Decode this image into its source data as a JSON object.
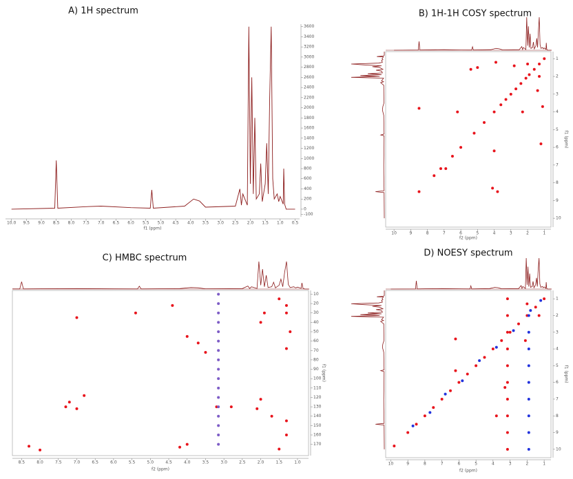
{
  "chart_data": [
    {
      "type": "line",
      "title": "A) 1H spectrum",
      "x_label": "f1 (ppm)",
      "color": "#8b1a1a",
      "x": [
        10.0,
        8.55,
        8.5,
        8.45,
        7.5,
        7.0,
        6.0,
        5.35,
        5.3,
        5.25,
        4.2,
        3.9,
        3.7,
        3.5,
        2.5,
        2.35,
        2.3,
        2.25,
        2.1,
        2.05,
        2.0,
        1.95,
        1.9,
        1.85,
        1.8,
        1.7,
        1.65,
        1.6,
        1.5,
        1.45,
        1.4,
        1.35,
        1.3,
        1.25,
        1.2,
        1.1,
        1.05,
        1.0,
        0.9,
        0.88,
        0.85,
        0.8,
        0.5
      ],
      "values": [
        0,
        20,
        960,
        20,
        50,
        60,
        30,
        20,
        380,
        20,
        60,
        200,
        160,
        40,
        60,
        400,
        80,
        300,
        80,
        3600,
        500,
        2600,
        300,
        1800,
        200,
        300,
        900,
        150,
        500,
        1300,
        300,
        2200,
        3600,
        600,
        200,
        300,
        150,
        250,
        100,
        800,
        100,
        0,
        0
      ],
      "xlim": [
        10.2,
        0.35
      ],
      "xticks": [
        {
          "value": 10,
          "label": "10.0"
        },
        9.5,
        {
          "value": 9,
          "label": "9.0"
        },
        8.5,
        {
          "value": 8,
          "label": "8.0"
        },
        7.5,
        {
          "value": 7,
          "label": "7.0"
        },
        6.5,
        {
          "value": 6,
          "label": "6.0"
        },
        5.5,
        {
          "value": 5,
          "label": "5.0"
        },
        4.5,
        {
          "value": 4,
          "label": "4.0"
        },
        3.5,
        {
          "value": 3,
          "label": "3.0"
        },
        2.5,
        {
          "value": 2,
          "label": "2.0"
        },
        1.5,
        {
          "value": 1,
          "label": "1.0"
        },
        0.5
      ],
      "ylim": [
        -150,
        3650
      ],
      "yticks": [
        3600,
        3400,
        3200,
        3000,
        2800,
        2600,
        2400,
        2200,
        2000,
        1800,
        1600,
        1400,
        1200,
        1000,
        800,
        600,
        400,
        200,
        0,
        -100
      ]
    },
    {
      "type": "scatter",
      "title": "B) 1H-1H COSY spectrum",
      "x_label": "f2 (ppm)",
      "y_label": "f1 (ppm)",
      "xlim": [
        10.5,
        0.6
      ],
      "xticks": [
        10,
        9,
        8,
        7,
        6,
        5,
        4,
        3,
        2,
        1
      ],
      "ylim": [
        10.5,
        0.6
      ],
      "yticks": [
        1,
        2,
        3,
        4,
        5,
        6,
        7,
        8,
        9,
        10
      ],
      "series": [
        {
          "color": "#e8141c",
          "x": [
            8.5,
            7.6,
            7.2,
            6.5,
            6.0,
            5.2,
            4.6,
            4.0,
            3.6,
            3.3,
            3.0,
            2.7,
            2.4,
            2.1,
            1.9,
            1.6,
            1.3,
            1.0,
            6.2,
            4.0,
            3.8,
            8.5,
            1.3,
            2.0,
            2.8,
            1.4,
            1.1,
            5.0,
            6.9,
            4.1,
            5.4,
            1.2,
            2.3,
            3.9
          ],
          "values": [
            8.5,
            7.6,
            7.2,
            6.5,
            6.0,
            5.2,
            4.6,
            4.0,
            3.6,
            3.3,
            3.0,
            2.7,
            2.4,
            2.1,
            1.9,
            1.6,
            1.3,
            1.0,
            4.0,
            6.2,
            8.5,
            3.8,
            2.0,
            1.3,
            1.4,
            2.8,
            3.7,
            1.5,
            7.2,
            8.3,
            1.6,
            5.8,
            4.0,
            1.2
          ]
        }
      ]
    },
    {
      "type": "scatter",
      "title": "C) HMBC spectrum",
      "x_label": "f2 (ppm)",
      "y_label": "f1 (ppm)",
      "xlim": [
        8.75,
        0.7
      ],
      "xticks": [
        8.5,
        {
          "value": 8,
          "label": "8.0"
        },
        7.5,
        {
          "value": 7,
          "label": "7.0"
        },
        6.5,
        {
          "value": 6,
          "label": "6.0"
        },
        5.5,
        {
          "value": 5,
          "label": "5.0"
        },
        4.5,
        {
          "value": 4,
          "label": "4.0"
        },
        3.5,
        {
          "value": 3,
          "label": "3.0"
        },
        2.5,
        {
          "value": 2,
          "label": "2.0"
        },
        1.5,
        {
          "value": 1,
          "label": "1.0"
        }
      ],
      "ylim": [
        182,
        6
      ],
      "yticks": [
        10,
        20,
        30,
        40,
        50,
        60,
        70,
        80,
        90,
        100,
        110,
        120,
        130,
        140,
        150,
        160,
        170
      ],
      "series": [
        {
          "color": "#e8141c",
          "x": [
            1.3,
            1.3,
            1.5,
            1.9,
            1.2,
            2.0,
            1.3,
            3.7,
            3.5,
            4.4,
            4.0,
            5.4,
            7.0,
            7.2,
            7.0,
            6.8,
            7.3,
            8.3,
            8.0,
            2.0,
            2.1,
            1.7,
            1.3,
            4.2,
            4.0,
            2.8,
            3.2,
            1.3,
            1.5
          ],
          "values": [
            30,
            22,
            15,
            30,
            50,
            40,
            68,
            62,
            72,
            22,
            55,
            30,
            35,
            125,
            132,
            118,
            130,
            172,
            176,
            122,
            132,
            140,
            145,
            173,
            170,
            130,
            130,
            160,
            175
          ]
        },
        {
          "color": "#7d5cc6",
          "x": [
            3.15,
            3.15,
            3.15,
            3.15,
            3.15,
            3.15,
            3.15,
            3.15,
            3.15,
            3.15,
            3.15,
            3.15,
            3.15,
            3.15,
            3.15,
            3.15,
            3.15
          ],
          "values": [
            10,
            20,
            30,
            40,
            50,
            60,
            70,
            80,
            90,
            100,
            110,
            120,
            130,
            140,
            150,
            160,
            170
          ]
        }
      ]
    },
    {
      "type": "scatter",
      "title": "D) NOESY spectrum",
      "x_label": "f2 (ppm)",
      "y_label": "f1 (ppm)",
      "xlim": [
        10.3,
        0.6
      ],
      "xticks": [
        10,
        9,
        8,
        7,
        6,
        5,
        4,
        3,
        2,
        1
      ],
      "ylim": [
        10.5,
        0.5
      ],
      "yticks": [
        1,
        2,
        3,
        4,
        5,
        6,
        7,
        8,
        9,
        10
      ],
      "series": [
        {
          "color": "#e8141c",
          "x": [
            9.8,
            9.0,
            8.5,
            8.0,
            7.5,
            7.0,
            6.5,
            6.0,
            5.5,
            5.0,
            4.5,
            4.0,
            3.5,
            3.0,
            2.5,
            2.0,
            1.5,
            1.0,
            6.2,
            6.2,
            3.3,
            2.0,
            1.3,
            3.8,
            2.1,
            3.15,
            3.15,
            3.15,
            3.15,
            3.15,
            3.15,
            3.15,
            3.15,
            3.15,
            3.15
          ],
          "values": [
            9.8,
            9.0,
            8.5,
            8.0,
            7.5,
            7.0,
            6.5,
            6.0,
            5.5,
            5.0,
            4.5,
            4.0,
            3.5,
            3.0,
            2.5,
            2.0,
            1.5,
            1.0,
            3.4,
            5.3,
            6.3,
            1.3,
            2.0,
            8.0,
            3.5,
            1,
            2,
            3,
            4,
            5,
            6,
            7,
            8,
            9,
            10
          ]
        },
        {
          "color": "#2233dd",
          "x": [
            8.7,
            7.7,
            6.8,
            5.8,
            4.8,
            3.8,
            2.8,
            1.8,
            1.2,
            1.9,
            1.9,
            1.9,
            1.9,
            1.9,
            1.9,
            1.9,
            1.9,
            1.9
          ],
          "values": [
            8.6,
            7.8,
            6.7,
            5.9,
            4.7,
            3.9,
            2.9,
            1.7,
            1.1,
            2,
            3,
            4,
            5,
            6,
            7,
            8,
            9,
            10
          ]
        }
      ]
    }
  ]
}
